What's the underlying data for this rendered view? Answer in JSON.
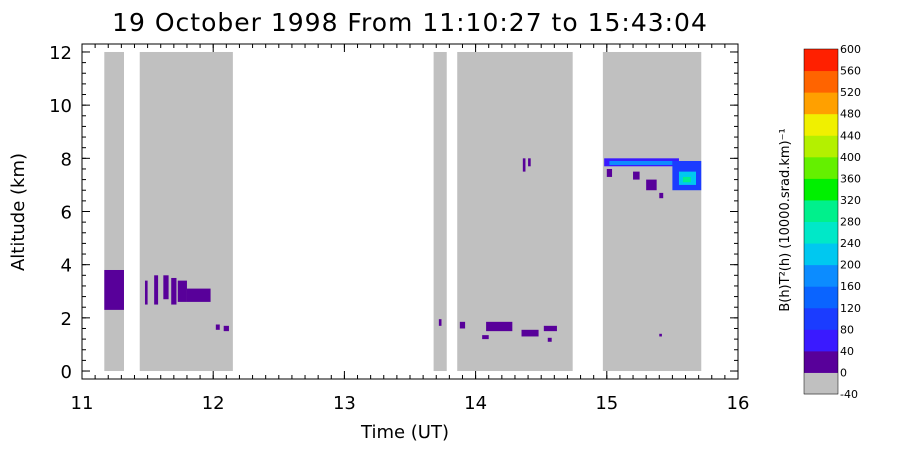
{
  "chart_data": {
    "type": "heatmap",
    "title": "19 October 1998 From 11:10:27 to 15:43:04",
    "xlabel": "Time (UT)",
    "ylabel": "Altitude (km)",
    "xlim": [
      11,
      16
    ],
    "ylim": [
      -0.3,
      12.3
    ],
    "x_ticks": [
      "11",
      "12",
      "13",
      "14",
      "15",
      "16"
    ],
    "y_ticks": [
      "0",
      "2",
      "4",
      "6",
      "8",
      "10",
      "12"
    ],
    "x_tick_values": [
      11,
      12,
      13,
      14,
      15,
      16
    ],
    "y_tick_values": [
      0,
      2,
      4,
      6,
      8,
      10,
      12
    ],
    "grid": false,
    "observation_windows": [
      {
        "start": 11.17,
        "end": 11.32,
        "alt_min": 0,
        "alt_max": 12
      },
      {
        "start": 11.44,
        "end": 12.15,
        "alt_min": 0,
        "alt_max": 12
      },
      {
        "start": 13.68,
        "end": 13.78,
        "alt_min": 0,
        "alt_max": 12
      },
      {
        "start": 13.86,
        "end": 14.74,
        "alt_min": 0,
        "alt_max": 12
      },
      {
        "start": 14.97,
        "end": 15.72,
        "alt_min": 0,
        "alt_max": 12
      }
    ],
    "features": [
      {
        "t_start": 11.17,
        "t_end": 11.32,
        "alt_min": 2.3,
        "alt_max": 3.8,
        "level": 40
      },
      {
        "t_start": 11.48,
        "t_end": 11.5,
        "alt_min": 2.5,
        "alt_max": 3.4,
        "level": 40
      },
      {
        "t_start": 11.55,
        "t_end": 11.58,
        "alt_min": 2.5,
        "alt_max": 3.6,
        "level": 40
      },
      {
        "t_start": 11.62,
        "t_end": 11.66,
        "alt_min": 2.7,
        "alt_max": 3.6,
        "level": 40
      },
      {
        "t_start": 11.68,
        "t_end": 11.72,
        "alt_min": 2.5,
        "alt_max": 3.5,
        "level": 40
      },
      {
        "t_start": 11.73,
        "t_end": 11.8,
        "alt_min": 2.6,
        "alt_max": 3.4,
        "level": 40
      },
      {
        "t_start": 11.8,
        "t_end": 11.98,
        "alt_min": 2.6,
        "alt_max": 3.1,
        "level": 40
      },
      {
        "t_start": 12.02,
        "t_end": 12.05,
        "alt_min": 1.55,
        "alt_max": 1.75,
        "level": 40
      },
      {
        "t_start": 12.08,
        "t_end": 12.12,
        "alt_min": 1.5,
        "alt_max": 1.7,
        "level": 40
      },
      {
        "t_start": 13.72,
        "t_end": 13.74,
        "alt_min": 1.7,
        "alt_max": 1.95,
        "level": 40
      },
      {
        "t_start": 13.88,
        "t_end": 13.92,
        "alt_min": 1.6,
        "alt_max": 1.85,
        "level": 40
      },
      {
        "t_start": 14.08,
        "t_end": 14.28,
        "alt_min": 1.5,
        "alt_max": 1.85,
        "level": 40
      },
      {
        "t_start": 14.05,
        "t_end": 14.1,
        "alt_min": 1.2,
        "alt_max": 1.35,
        "level": 40
      },
      {
        "t_start": 14.35,
        "t_end": 14.48,
        "alt_min": 1.3,
        "alt_max": 1.55,
        "level": 40
      },
      {
        "t_start": 14.52,
        "t_end": 14.62,
        "alt_min": 1.5,
        "alt_max": 1.7,
        "level": 40
      },
      {
        "t_start": 14.55,
        "t_end": 14.58,
        "alt_min": 1.1,
        "alt_max": 1.25,
        "level": 40
      },
      {
        "t_start": 14.36,
        "t_end": 14.38,
        "alt_min": 7.5,
        "alt_max": 8.0,
        "level": 40
      },
      {
        "t_start": 14.4,
        "t_end": 14.42,
        "alt_min": 7.7,
        "alt_max": 8.0,
        "level": 40
      },
      {
        "t_start": 14.98,
        "t_end": 15.55,
        "alt_min": 7.7,
        "alt_max": 8.0,
        "level": 80
      },
      {
        "t_start": 15.02,
        "t_end": 15.5,
        "alt_min": 7.75,
        "alt_max": 7.9,
        "level": 200
      },
      {
        "t_start": 15.5,
        "t_end": 15.72,
        "alt_min": 6.8,
        "alt_max": 7.9,
        "level": 120
      },
      {
        "t_start": 15.55,
        "t_end": 15.68,
        "alt_min": 7.0,
        "alt_max": 7.5,
        "level": 240
      },
      {
        "t_start": 15.58,
        "t_end": 15.64,
        "alt_min": 7.1,
        "alt_max": 7.3,
        "level": 320
      },
      {
        "t_start": 15.0,
        "t_end": 15.04,
        "alt_min": 7.3,
        "alt_max": 7.6,
        "level": 40
      },
      {
        "t_start": 15.2,
        "t_end": 15.25,
        "alt_min": 7.2,
        "alt_max": 7.5,
        "level": 40
      },
      {
        "t_start": 15.3,
        "t_end": 15.38,
        "alt_min": 6.8,
        "alt_max": 7.2,
        "level": 40
      },
      {
        "t_start": 15.4,
        "t_end": 15.43,
        "alt_min": 6.5,
        "alt_max": 6.7,
        "level": 40
      },
      {
        "t_start": 15.4,
        "t_end": 15.42,
        "alt_min": 1.3,
        "alt_max": 1.4,
        "level": 40
      }
    ],
    "colorbar": {
      "label": "B(h)T²(h)   (10000.srad.km)⁻¹",
      "levels": [
        -40,
        0,
        40,
        80,
        120,
        160,
        200,
        240,
        280,
        320,
        360,
        400,
        440,
        480,
        520,
        560,
        600
      ],
      "tick_labels": [
        "-40",
        "0",
        "40",
        "80",
        "120",
        "160",
        "200",
        "240",
        "280",
        "320",
        "360",
        "400",
        "440",
        "480",
        "520",
        "560",
        "600"
      ],
      "colors": [
        "#c0c0c0",
        "#c0c0c0",
        "#58009a",
        "#3a1aff",
        "#1b3cff",
        "#0a64ff",
        "#0c8cff",
        "#00c8f0",
        "#00e8c8",
        "#00f08c",
        "#00f000",
        "#64f000",
        "#b4f000",
        "#f0f000",
        "#ffa000",
        "#ff6400",
        "#ff2000"
      ]
    }
  }
}
